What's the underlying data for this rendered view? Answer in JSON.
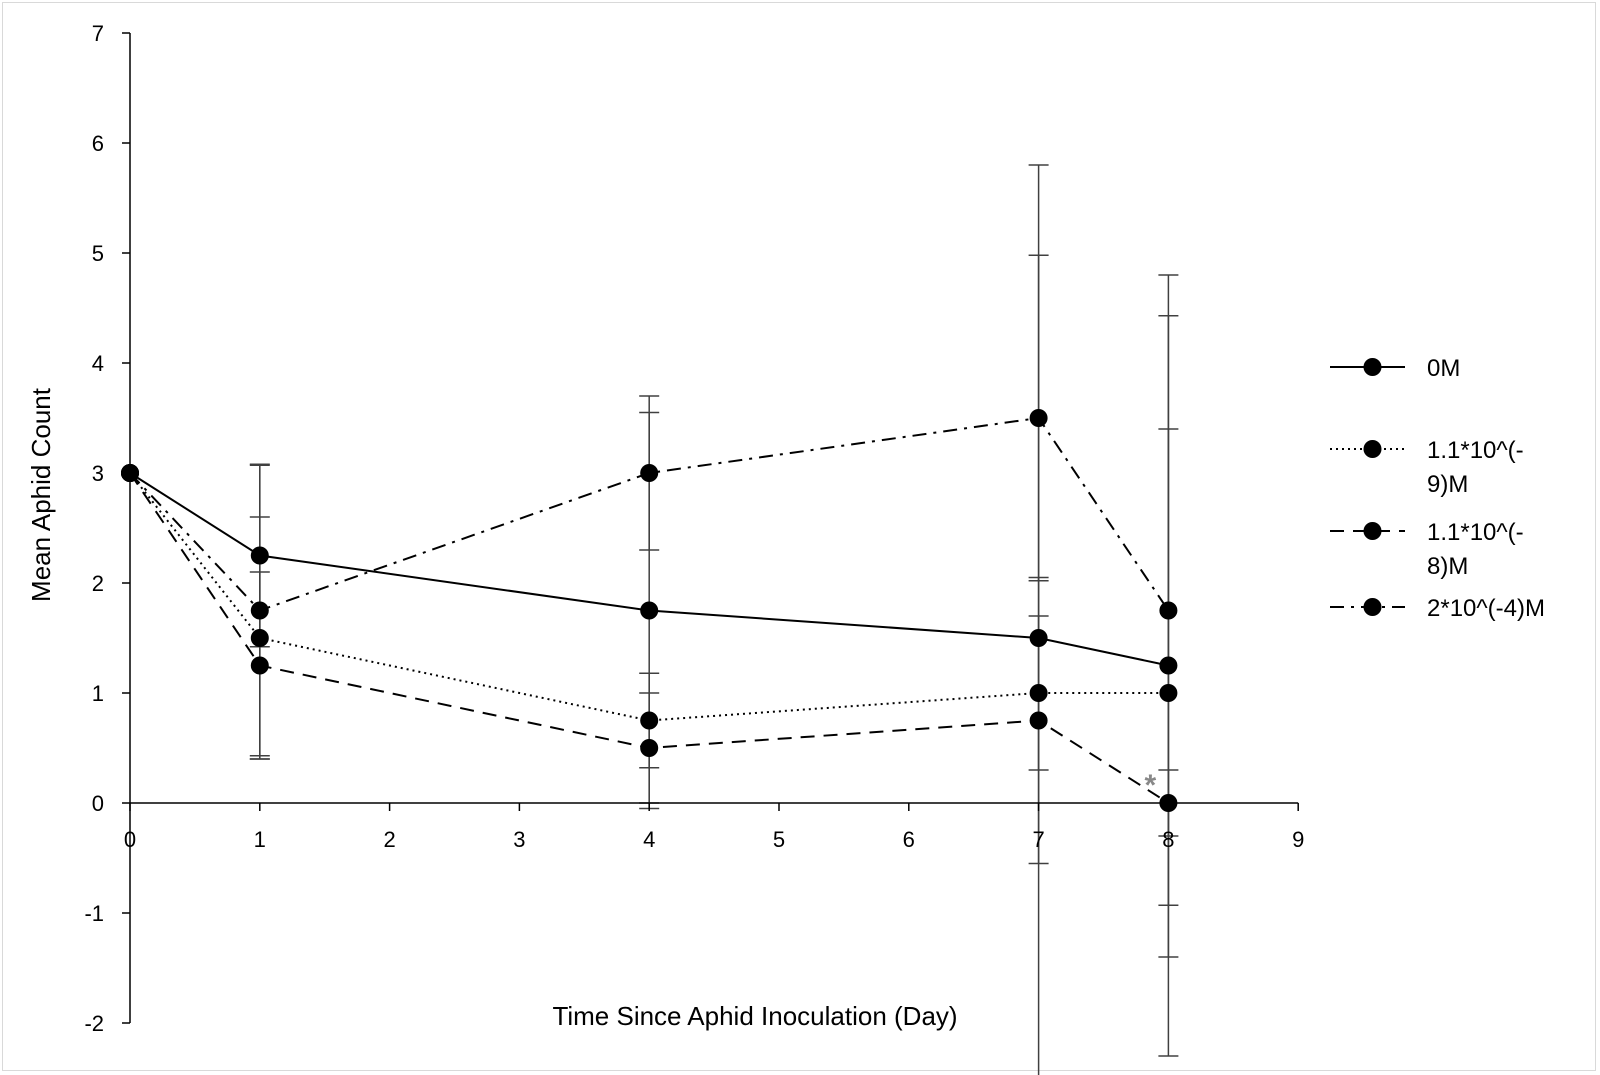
{
  "chart_data": {
    "type": "line",
    "title": "",
    "xlabel": "Time Since Aphid Inoculation (Day)",
    "ylabel": "Mean Aphid Count",
    "xlim": [
      0,
      9
    ],
    "ylim": [
      -2,
      7
    ],
    "x_ticks": [
      0,
      1,
      2,
      3,
      4,
      5,
      6,
      7,
      8,
      9
    ],
    "y_ticks": [
      -2,
      -1,
      0,
      1,
      2,
      3,
      4,
      5,
      6,
      7
    ],
    "grid": false,
    "legend_position": "right",
    "x": [
      0,
      1,
      4,
      7,
      8
    ],
    "series": [
      {
        "name": "0M",
        "legend_lines": [
          "0M"
        ],
        "dash": "solid",
        "values": [
          3,
          2.25,
          1.75,
          1.5,
          1.25
        ],
        "error": [
          0,
          0.83,
          1.8,
          4.3,
          3.55
        ]
      },
      {
        "name": "1.1*10^(-9)M",
        "legend_lines": [
          "1.1*10^(-",
          "9)M"
        ],
        "dash": "dotted",
        "values": [
          3,
          1.5,
          0.75,
          1.0,
          1.0
        ],
        "error": [
          0,
          1.1,
          0.43,
          0.7,
          2.4
        ]
      },
      {
        "name": "1.1*10^(-8)M",
        "legend_lines": [
          "1.1*10^(-",
          "8)M"
        ],
        "dash": "dashed",
        "values": [
          3,
          1.25,
          0.5,
          0.75,
          0
        ],
        "error": [
          0,
          0.85,
          0.5,
          1.3,
          0.3
        ]
      },
      {
        "name": "2*10^(-4)M",
        "legend_lines": [
          "2*10^(-4)M"
        ],
        "dash": "dashdot",
        "values": [
          3,
          1.75,
          3.0,
          3.5,
          1.75
        ],
        "error": [
          0,
          1.32,
          0.7,
          1.48,
          2.68
        ]
      }
    ],
    "annotations": [
      {
        "text": "*",
        "x": 8,
        "y": 0,
        "color": "#888888",
        "placement": "upper-left of point"
      }
    ]
  }
}
